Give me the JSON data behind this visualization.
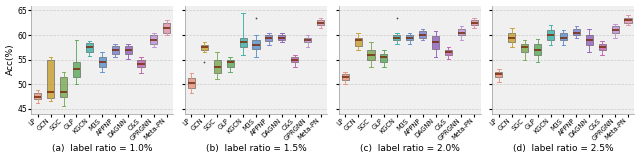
{
  "subplots": [
    {
      "label": "(a)  label ratio = 1.0%",
      "ylim": [
        44,
        66
      ],
      "yticks": [
        45,
        50,
        55,
        60,
        65
      ],
      "show_ylabel": true,
      "methods": [
        "LP",
        "GCN",
        "SGC",
        "GLP",
        "KGCN",
        "M3S",
        "APPNP",
        "DAGNN",
        "C&S",
        "GPRGNN",
        "Meta-PN"
      ],
      "boxes": [
        {
          "med": 47.5,
          "q1": 47.0,
          "q3": 48.2,
          "whislo": 46.2,
          "whishi": 48.8,
          "fliers": []
        },
        {
          "med": 48.5,
          "q1": 47.2,
          "q3": 55.0,
          "whislo": 46.5,
          "whishi": 55.5,
          "fliers": []
        },
        {
          "med": 48.5,
          "q1": 47.5,
          "q3": 51.5,
          "whislo": 45.5,
          "whishi": 52.5,
          "fliers": []
        },
        {
          "med": 53.0,
          "q1": 51.5,
          "q3": 54.5,
          "whislo": 50.0,
          "whishi": 59.0,
          "fliers": []
        },
        {
          "med": 57.5,
          "q1": 56.5,
          "q3": 58.3,
          "whislo": 55.8,
          "whishi": 58.8,
          "fliers": []
        },
        {
          "med": 54.5,
          "q1": 53.5,
          "q3": 55.5,
          "whislo": 52.5,
          "whishi": 56.5,
          "fliers": []
        },
        {
          "med": 57.0,
          "q1": 56.2,
          "q3": 57.8,
          "whislo": 55.5,
          "whishi": 58.2,
          "fliers": []
        },
        {
          "med": 57.0,
          "q1": 56.2,
          "q3": 57.8,
          "whislo": 55.2,
          "whishi": 58.2,
          "fliers": []
        },
        {
          "med": 54.2,
          "q1": 53.5,
          "q3": 55.0,
          "whislo": 52.2,
          "whishi": 55.5,
          "fliers": []
        },
        {
          "med": 59.0,
          "q1": 58.2,
          "q3": 60.0,
          "whislo": 57.5,
          "whishi": 60.5,
          "fliers": []
        },
        {
          "med": 61.5,
          "q1": 60.5,
          "q3": 62.5,
          "whislo": 60.0,
          "whishi": 63.0,
          "fliers": []
        }
      ]
    },
    {
      "label": "(b)  label ratio = 1.5%",
      "ylim": [
        44,
        66
      ],
      "yticks": [
        45,
        50,
        55,
        60,
        65
      ],
      "show_ylabel": true,
      "methods": [
        "LP",
        "GCN",
        "SGC",
        "GLP",
        "KGCN",
        "M3S",
        "APPNP",
        "DAGNN",
        "C&S",
        "GPRGNN",
        "Meta-PN"
      ],
      "boxes": [
        {
          "med": 50.2,
          "q1": 49.2,
          "q3": 51.2,
          "whislo": 48.2,
          "whishi": 52.2,
          "fliers": []
        },
        {
          "med": 57.5,
          "q1": 57.0,
          "q3": 58.0,
          "whislo": 56.5,
          "whishi": 58.5,
          "fliers": [
            54.5
          ]
        },
        {
          "med": 53.5,
          "q1": 52.2,
          "q3": 55.0,
          "whislo": 51.0,
          "whishi": 56.5,
          "fliers": []
        },
        {
          "med": 54.5,
          "q1": 53.5,
          "q3": 55.0,
          "whislo": 52.5,
          "whishi": 55.5,
          "fliers": []
        },
        {
          "med": 58.5,
          "q1": 57.5,
          "q3": 59.5,
          "whislo": 56.0,
          "whishi": 64.5,
          "fliers": []
        },
        {
          "med": 58.0,
          "q1": 57.2,
          "q3": 59.0,
          "whislo": 55.5,
          "whishi": 60.0,
          "fliers": [
            63.5
          ]
        },
        {
          "med": 59.5,
          "q1": 58.8,
          "q3": 60.0,
          "whislo": 58.0,
          "whishi": 60.5,
          "fliers": []
        },
        {
          "med": 59.5,
          "q1": 59.0,
          "q3": 60.0,
          "whislo": 58.5,
          "whishi": 60.5,
          "fliers": []
        },
        {
          "med": 55.0,
          "q1": 54.5,
          "q3": 55.5,
          "whislo": 53.5,
          "whishi": 56.0,
          "fliers": []
        },
        {
          "med": 59.0,
          "q1": 58.5,
          "q3": 59.5,
          "whislo": 57.5,
          "whishi": 60.0,
          "fliers": []
        },
        {
          "med": 62.5,
          "q1": 62.0,
          "q3": 63.0,
          "whislo": 61.5,
          "whishi": 63.5,
          "fliers": []
        }
      ]
    },
    {
      "label": "(c)  label ratio = 2.0%",
      "ylim": [
        44,
        66
      ],
      "yticks": [
        45,
        50,
        55,
        60,
        65
      ],
      "show_ylabel": true,
      "methods": [
        "LP",
        "GCN",
        "SGC",
        "GLP",
        "KGCN",
        "M3S",
        "APPNP",
        "DAGNN",
        "C&S",
        "GPRGNN",
        "Meta-PN"
      ],
      "boxes": [
        {
          "med": 51.5,
          "q1": 50.8,
          "q3": 52.0,
          "whislo": 50.0,
          "whishi": 52.5,
          "fliers": []
        },
        {
          "med": 59.0,
          "q1": 57.8,
          "q3": 59.5,
          "whislo": 57.0,
          "whishi": 60.5,
          "fliers": []
        },
        {
          "med": 56.0,
          "q1": 55.0,
          "q3": 57.0,
          "whislo": 53.5,
          "whishi": 58.5,
          "fliers": []
        },
        {
          "med": 55.5,
          "q1": 54.5,
          "q3": 56.2,
          "whislo": 53.5,
          "whishi": 57.0,
          "fliers": []
        },
        {
          "med": 59.5,
          "q1": 59.0,
          "q3": 60.0,
          "whislo": 58.2,
          "whishi": 60.5,
          "fliers": [
            63.5
          ]
        },
        {
          "med": 59.5,
          "q1": 59.0,
          "q3": 60.0,
          "whislo": 58.2,
          "whishi": 60.5,
          "fliers": []
        },
        {
          "med": 60.0,
          "q1": 59.5,
          "q3": 60.8,
          "whislo": 59.0,
          "whishi": 61.2,
          "fliers": []
        },
        {
          "med": 58.5,
          "q1": 57.2,
          "q3": 59.8,
          "whislo": 55.5,
          "whishi": 60.8,
          "fliers": []
        },
        {
          "med": 56.5,
          "q1": 56.0,
          "q3": 57.0,
          "whislo": 55.2,
          "whishi": 57.5,
          "fliers": []
        },
        {
          "med": 60.5,
          "q1": 60.0,
          "q3": 61.2,
          "whislo": 59.0,
          "whishi": 61.8,
          "fliers": []
        },
        {
          "med": 62.5,
          "q1": 62.0,
          "q3": 63.0,
          "whislo": 61.5,
          "whishi": 63.5,
          "fliers": []
        }
      ]
    },
    {
      "label": "(d)  label ratio = 2.5%",
      "ylim": [
        44,
        66
      ],
      "yticks": [
        45,
        50,
        55,
        60,
        65
      ],
      "show_ylabel": true,
      "methods": [
        "LP",
        "GCN",
        "SGC",
        "GLP",
        "KGCN",
        "M3S",
        "APPNP",
        "DAGNN",
        "C&S",
        "GPRGNN",
        "Meta-PN"
      ],
      "boxes": [
        {
          "med": 52.0,
          "q1": 51.5,
          "q3": 52.5,
          "whislo": 50.5,
          "whishi": 53.0,
          "fliers": []
        },
        {
          "med": 59.5,
          "q1": 58.5,
          "q3": 60.5,
          "whislo": 57.5,
          "whishi": 61.5,
          "fliers": []
        },
        {
          "med": 57.5,
          "q1": 56.5,
          "q3": 58.2,
          "whislo": 55.0,
          "whishi": 59.0,
          "fliers": []
        },
        {
          "med": 57.0,
          "q1": 56.0,
          "q3": 58.2,
          "whislo": 54.5,
          "whishi": 59.2,
          "fliers": []
        },
        {
          "med": 60.0,
          "q1": 59.0,
          "q3": 61.0,
          "whislo": 58.0,
          "whishi": 62.0,
          "fliers": []
        },
        {
          "med": 59.5,
          "q1": 59.0,
          "q3": 60.5,
          "whislo": 58.0,
          "whishi": 61.0,
          "fliers": []
        },
        {
          "med": 60.5,
          "q1": 60.0,
          "q3": 61.2,
          "whislo": 59.5,
          "whishi": 61.8,
          "fliers": []
        },
        {
          "med": 59.0,
          "q1": 58.0,
          "q3": 60.0,
          "whislo": 56.5,
          "whishi": 61.2,
          "fliers": []
        },
        {
          "med": 57.5,
          "q1": 57.0,
          "q3": 58.2,
          "whislo": 56.0,
          "whishi": 58.8,
          "fliers": []
        },
        {
          "med": 61.0,
          "q1": 60.5,
          "q3": 61.8,
          "whislo": 59.5,
          "whishi": 62.2,
          "fliers": []
        },
        {
          "med": 63.0,
          "q1": 62.5,
          "q3": 63.5,
          "whislo": 62.0,
          "whishi": 64.0,
          "fliers": []
        }
      ]
    }
  ],
  "colors": [
    "#e8927c",
    "#c8a030",
    "#7aaa50",
    "#5aaa5a",
    "#3ab0a8",
    "#5a90d0",
    "#7880d0",
    "#9060c0",
    "#c060b0",
    "#c090d8",
    "#e090a8"
  ],
  "median_color": "#7a3010",
  "ylabel": "Acc(%)",
  "background": "#f0f0f0",
  "fig_width": 6.4,
  "fig_height": 1.59,
  "dpi": 100
}
